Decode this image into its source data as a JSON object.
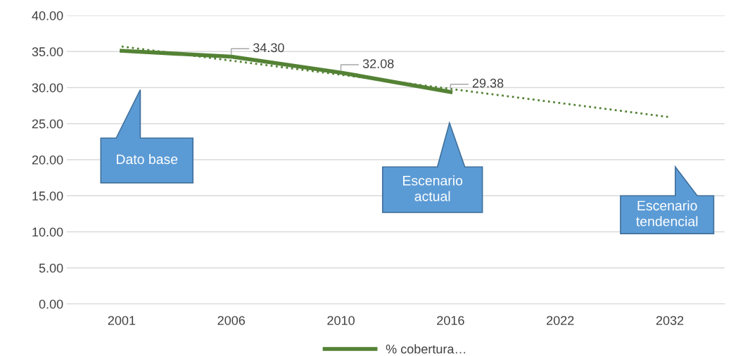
{
  "chart_data": {
    "type": "line",
    "categories": [
      "2001",
      "2006",
      "2010",
      "2016",
      "2022",
      "2032"
    ],
    "series": [
      {
        "name": "% cobertura…",
        "color": "#548235",
        "values": [
          35.1,
          34.3,
          32.08,
          29.38,
          null,
          null
        ],
        "value_labels": [
          null,
          "34.30",
          "32.08",
          "29.38",
          null,
          null
        ],
        "line_style": "solid"
      },
      {
        "color": "#548235",
        "values": [
          35.7,
          33.74,
          31.78,
          29.82,
          27.86,
          25.9
        ],
        "line_style": "dotted"
      }
    ],
    "ylim": [
      0,
      40
    ],
    "yticks": [
      {
        "value": 0,
        "label": "0.00"
      },
      {
        "value": 5,
        "label": "5.00"
      },
      {
        "value": 10,
        "label": "10.00"
      },
      {
        "value": 15,
        "label": "15.00"
      },
      {
        "value": 20,
        "label": "20.00"
      },
      {
        "value": 25,
        "label": "25.00"
      },
      {
        "value": 30,
        "label": "30.00"
      },
      {
        "value": 35,
        "label": "35.00"
      },
      {
        "value": 40,
        "label": "40.00"
      }
    ],
    "grid": "y",
    "legend": "bottom",
    "marker": "none",
    "annotations": [
      "Dato base",
      "Escenario\nactual",
      "Escenario\ntendencial"
    ]
  }
}
